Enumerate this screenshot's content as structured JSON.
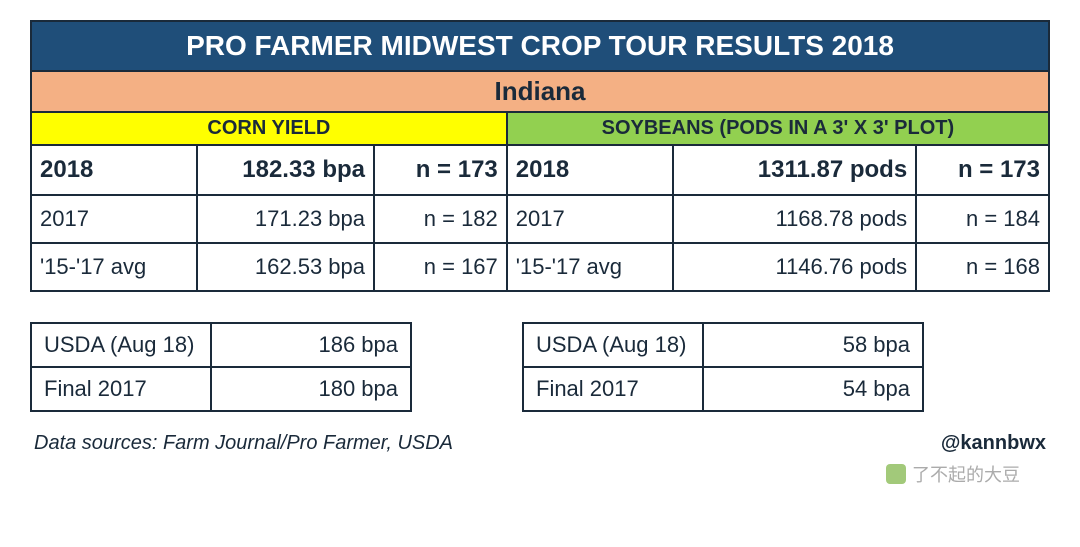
{
  "colors": {
    "title_bg": "#1f4e79",
    "title_text": "#ffffff",
    "state_bg": "#f4b084",
    "corn_bg": "#ffff00",
    "soy_bg": "#92d050",
    "border": "#1a2a3a",
    "text": "#1a2a3a",
    "bg": "#ffffff"
  },
  "typography": {
    "family": "Arial",
    "title_size": 28,
    "state_size": 26,
    "header_size": 20,
    "data_size": 22,
    "data_bold_size": 24,
    "footer_size": 20
  },
  "title": "PRO FARMER MIDWEST CROP TOUR RESULTS 2018",
  "state": "Indiana",
  "corn": {
    "header": "CORN YIELD",
    "rows": [
      {
        "label": "2018",
        "value": "182.33 bpa",
        "n": "n = 173",
        "bold": true
      },
      {
        "label": "2017",
        "value": "171.23 bpa",
        "n": "n = 182",
        "bold": false
      },
      {
        "label": "'15-'17 avg",
        "value": "162.53 bpa",
        "n": "n = 167",
        "bold": false
      }
    ],
    "usda": [
      {
        "label": "USDA (Aug 18)",
        "value": "186 bpa"
      },
      {
        "label": "Final 2017",
        "value": "180 bpa"
      }
    ]
  },
  "soy": {
    "header": "SOYBEANS (PODS IN A 3' X 3' PLOT)",
    "rows": [
      {
        "label": "2018",
        "value": "1311.87 pods",
        "n": "n = 173",
        "bold": true
      },
      {
        "label": "2017",
        "value": "1168.78 pods",
        "n": "n = 184",
        "bold": false
      },
      {
        "label": "'15-'17 avg",
        "value": "1146.76 pods",
        "n": "n = 168",
        "bold": false
      }
    ],
    "usda": [
      {
        "label": "USDA (Aug 18)",
        "value": "58 bpa"
      },
      {
        "label": "Final 2017",
        "value": "54 bpa"
      }
    ]
  },
  "footer": {
    "sources": "Data sources: Farm Journal/Pro Farmer, USDA",
    "handle": "@kannbwx"
  },
  "watermark": "了不起的大豆"
}
